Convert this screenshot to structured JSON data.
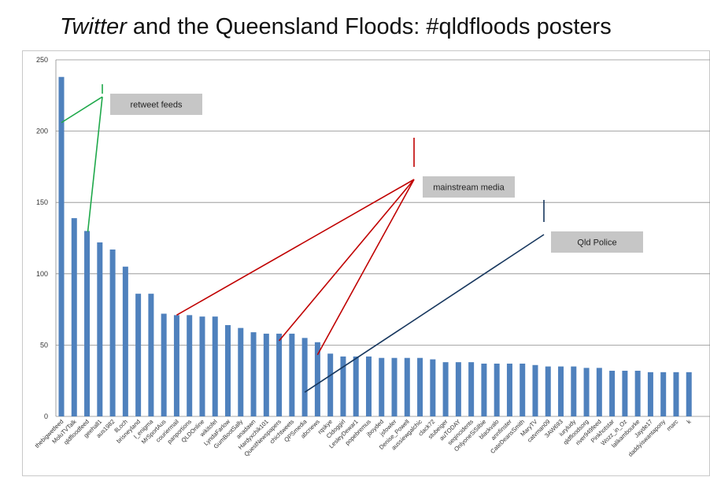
{
  "title": {
    "italic": "Twitter",
    "rest": " and the Queensland Floods: #qldfloods posters"
  },
  "chart_data": {
    "type": "bar",
    "categories": [
      "thebigwetfeed",
      "MoluTVTalk",
      "qldfloodfeed",
      "geehall1",
      "aus1982",
      "llLoch",
      "brisneyland",
      "l_enigma",
      "MrSportAus",
      "couriermail",
      "panportions",
      "QLDOnline",
      "wikitofel",
      "LyndaFarlow",
      "GumBootSally",
      "anadawn",
      "Hardyxchik101",
      "QuestNewspapers",
      "chichtweets",
      "QPSmedia",
      "abcnews",
      "rqskye",
      "Cldoggirl",
      "LesleyDewar1",
      "popebremus",
      "jboyded",
      "jsfowler",
      "Denise_Powell",
      "aussiewgalchic",
      "clack72",
      "stubeiger",
      "auTODAY",
      "seqincidents",
      "OnlyoneSiSilbie",
      "blackvalo",
      "annfinster",
      "CateDeansSmith",
      "MaryTV",
      "catvman09",
      "3AW693",
      "iuryludy",
      "qldfloodsorg",
      "river949feed",
      "Pinkhotstar",
      "Wozz_in_Oz",
      "lalikambourke",
      "Jayde17",
      "daddyiswantapony",
      "marc",
      "k"
    ],
    "values": [
      238,
      139,
      130,
      122,
      117,
      105,
      86,
      86,
      72,
      71,
      71,
      70,
      70,
      64,
      62,
      59,
      58,
      58,
      58,
      55,
      52,
      44,
      42,
      42,
      42,
      41,
      41,
      41,
      41,
      40,
      38,
      38,
      38,
      37,
      37,
      37,
      37,
      36,
      35,
      35,
      35,
      34,
      34,
      32,
      32,
      32,
      31,
      31,
      31,
      31
    ],
    "ylim": [
      0,
      250
    ],
    "yticks": [
      0,
      50,
      100,
      150,
      200,
      250
    ],
    "grid": true,
    "bar_color": "#4f81bd",
    "annotations": [
      {
        "label": "retweet feeds",
        "line_color": "#1ea84a",
        "targets": [
          "thebigwetfeed",
          "qldfloodfeed"
        ]
      },
      {
        "label": "mainstream media",
        "line_color": "#c00000",
        "targets": [
          "couriermail",
          "QuestNewspapers",
          "abcnews"
        ]
      },
      {
        "label": "Qld Police",
        "line_color": "#17375e",
        "targets": [
          "QPSmedia"
        ]
      }
    ]
  }
}
